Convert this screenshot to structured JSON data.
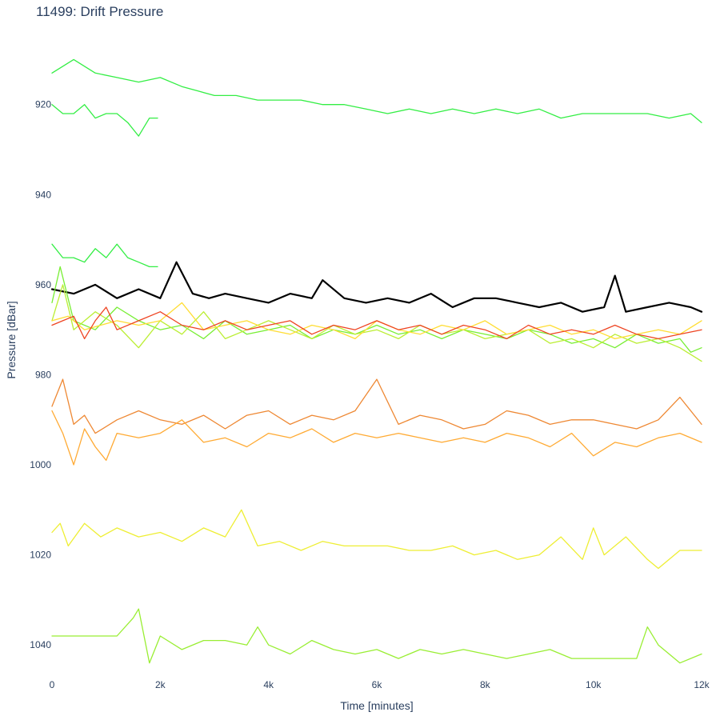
{
  "chart_data": {
    "type": "line",
    "title": "11499: Drift Pressure",
    "xlabel": "Time [minutes]",
    "ylabel": "Pressure [dBar]",
    "xlim": [
      0,
      12000
    ],
    "ylim": [
      1046,
      903
    ],
    "y_reversed": true,
    "grid": false,
    "legend": "none",
    "x_ticks": [
      {
        "value": 0,
        "label": "0"
      },
      {
        "value": 2000,
        "label": "2k"
      },
      {
        "value": 4000,
        "label": "4k"
      },
      {
        "value": 6000,
        "label": "6k"
      },
      {
        "value": 8000,
        "label": "8k"
      },
      {
        "value": 10000,
        "label": "10k"
      },
      {
        "value": 12000,
        "label": "12k"
      }
    ],
    "y_ticks": [
      {
        "value": 920,
        "label": "920"
      },
      {
        "value": 940,
        "label": "940"
      },
      {
        "value": 960,
        "label": "960"
      },
      {
        "value": 980,
        "label": "980"
      },
      {
        "value": 1000,
        "label": "1000"
      },
      {
        "value": 1020,
        "label": "1020"
      },
      {
        "value": 1040,
        "label": "1040"
      }
    ],
    "series": [
      {
        "name": "green-top",
        "color": "#33ee44",
        "width": 1.3,
        "x": [
          0,
          400,
          800,
          1200,
          1600,
          2000,
          2400,
          2700,
          3000,
          3400,
          3800,
          4200,
          4600,
          5000,
          5400,
          5800,
          6200,
          6600,
          7000,
          7400,
          7800,
          8200,
          8600,
          9000,
          9400,
          9800,
          10200,
          10600,
          11000,
          11400,
          11800,
          12000
        ],
        "y": [
          913,
          910,
          913,
          914,
          915,
          914,
          916,
          917,
          918,
          918,
          919,
          919,
          919,
          920,
          920,
          921,
          922,
          921,
          922,
          921,
          922,
          921,
          922,
          921,
          923,
          922,
          922,
          922,
          922,
          923,
          922,
          924
        ]
      },
      {
        "name": "green-short-920",
        "color": "#33ee44",
        "width": 1.3,
        "x": [
          0,
          200,
          400,
          600,
          800,
          1000,
          1200,
          1400,
          1600,
          1800,
          1950
        ],
        "y": [
          920,
          922,
          922,
          920,
          923,
          922,
          922,
          924,
          927,
          923,
          923
        ]
      },
      {
        "name": "green-short-952",
        "color": "#33ee44",
        "width": 1.3,
        "x": [
          0,
          200,
          400,
          600,
          800,
          1000,
          1200,
          1400,
          1600,
          1800,
          1950
        ],
        "y": [
          951,
          954,
          954,
          955,
          952,
          954,
          951,
          954,
          955,
          956,
          956
        ]
      },
      {
        "name": "black-main",
        "color": "#000000",
        "width": 2.2,
        "x": [
          0,
          400,
          800,
          1200,
          1600,
          2000,
          2300,
          2600,
          2900,
          3200,
          3600,
          4000,
          4400,
          4800,
          5000,
          5400,
          5800,
          6200,
          6600,
          7000,
          7400,
          7800,
          8200,
          8600,
          9000,
          9400,
          9800,
          10200,
          10400,
          10600,
          11000,
          11400,
          11800,
          12000
        ],
        "y": [
          961,
          962,
          960,
          963,
          961,
          963,
          955,
          962,
          963,
          962,
          963,
          964,
          962,
          963,
          959,
          963,
          964,
          963,
          964,
          962,
          965,
          963,
          963,
          964,
          965,
          964,
          966,
          965,
          958,
          966,
          965,
          964,
          965,
          966
        ]
      },
      {
        "name": "green-mid",
        "color": "#77ee33",
        "width": 1.3,
        "x": [
          0,
          150,
          400,
          800,
          1200,
          1600,
          2000,
          2400,
          2800,
          3200,
          3600,
          4000,
          4400,
          4800,
          5200,
          5600,
          6000,
          6400,
          6800,
          7200,
          7600,
          8000,
          8400,
          8800,
          9200,
          9600,
          10000,
          10400,
          10800,
          11200,
          11600,
          11800,
          12000
        ],
        "y": [
          964,
          956,
          968,
          970,
          965,
          968,
          970,
          969,
          972,
          968,
          971,
          970,
          969,
          972,
          970,
          971,
          969,
          971,
          970,
          972,
          970,
          971,
          972,
          970,
          971,
          973,
          972,
          974,
          971,
          973,
          972,
          975,
          974
        ]
      },
      {
        "name": "yellow-green-mid",
        "color": "#bbee33",
        "width": 1.3,
        "x": [
          0,
          200,
          400,
          800,
          1200,
          1600,
          2000,
          2400,
          2800,
          3200,
          3600,
          4000,
          4400,
          4800,
          5200,
          5600,
          6000,
          6400,
          6800,
          7200,
          7600,
          8000,
          8400,
          8800,
          9200,
          9600,
          10000,
          10400,
          10800,
          11200,
          11600,
          12000
        ],
        "y": [
          968,
          960,
          970,
          966,
          969,
          974,
          968,
          971,
          966,
          972,
          970,
          968,
          970,
          972,
          969,
          971,
          970,
          972,
          969,
          971,
          970,
          972,
          971,
          970,
          973,
          972,
          974,
          971,
          973,
          972,
          974,
          977
        ]
      },
      {
        "name": "yellow-mid",
        "color": "#ffdd33",
        "width": 1.3,
        "x": [
          0,
          300,
          600,
          900,
          1200,
          1600,
          2000,
          2400,
          2800,
          3200,
          3600,
          4000,
          4400,
          4800,
          5200,
          5600,
          6000,
          6400,
          6800,
          7200,
          7600,
          8000,
          8400,
          8800,
          9200,
          9600,
          10000,
          10400,
          10800,
          11200,
          11600,
          12000
        ],
        "y": [
          968,
          967,
          970,
          969,
          968,
          969,
          968,
          964,
          970,
          969,
          968,
          970,
          971,
          969,
          970,
          972,
          968,
          970,
          971,
          969,
          970,
          968,
          971,
          970,
          969,
          971,
          970,
          972,
          971,
          970,
          971,
          968
        ]
      },
      {
        "name": "red-mid",
        "color": "#ee4422",
        "width": 1.3,
        "x": [
          0,
          200,
          400,
          600,
          800,
          1000,
          1200,
          1600,
          2000,
          2400,
          2800,
          3200,
          3600,
          4000,
          4400,
          4800,
          5200,
          5600,
          6000,
          6400,
          6800,
          7200,
          7600,
          8000,
          8400,
          8800,
          9200,
          9600,
          10000,
          10400,
          10800,
          11200,
          11600,
          12000
        ],
        "y": [
          969,
          968,
          967,
          972,
          968,
          965,
          970,
          968,
          966,
          969,
          970,
          968,
          970,
          969,
          968,
          971,
          969,
          970,
          968,
          970,
          969,
          971,
          969,
          970,
          972,
          969,
          971,
          970,
          971,
          969,
          971,
          972,
          971,
          970
        ]
      },
      {
        "name": "orange-upper",
        "color": "#ee8833",
        "width": 1.3,
        "x": [
          0,
          200,
          400,
          600,
          800,
          1200,
          1600,
          2000,
          2400,
          2800,
          3200,
          3600,
          4000,
          4400,
          4800,
          5200,
          5600,
          6000,
          6400,
          6800,
          7200,
          7600,
          8000,
          8400,
          8800,
          9200,
          9600,
          10000,
          10400,
          10800,
          11200,
          11600,
          12000
        ],
        "y": [
          987,
          981,
          991,
          989,
          993,
          990,
          988,
          990,
          991,
          989,
          992,
          989,
          988,
          991,
          989,
          990,
          988,
          981,
          991,
          989,
          990,
          992,
          991,
          988,
          989,
          991,
          990,
          990,
          991,
          992,
          990,
          985,
          991
        ]
      },
      {
        "name": "orange-lower",
        "color": "#ffaa33",
        "width": 1.3,
        "x": [
          0,
          200,
          400,
          600,
          800,
          1000,
          1200,
          1600,
          2000,
          2400,
          2800,
          3200,
          3600,
          4000,
          4400,
          4800,
          5200,
          5600,
          6000,
          6400,
          6800,
          7200,
          7600,
          8000,
          8400,
          8800,
          9200,
          9600,
          10000,
          10400,
          10800,
          11200,
          11600,
          12000
        ],
        "y": [
          988,
          993,
          1000,
          992,
          996,
          999,
          993,
          994,
          993,
          990,
          995,
          994,
          996,
          993,
          994,
          992,
          995,
          993,
          994,
          993,
          994,
          995,
          994,
          995,
          993,
          994,
          996,
          993,
          998,
          995,
          996,
          994,
          993,
          995
        ]
      },
      {
        "name": "yellow-1020",
        "color": "#eeee33",
        "width": 1.3,
        "x": [
          0,
          150,
          300,
          600,
          900,
          1200,
          1600,
          2000,
          2400,
          2800,
          3200,
          3500,
          3800,
          4200,
          4600,
          5000,
          5400,
          5800,
          6200,
          6600,
          7000,
          7400,
          7800,
          8200,
          8600,
          9000,
          9400,
          9800,
          10000,
          10200,
          10600,
          11000,
          11200,
          11600,
          12000
        ],
        "y": [
          1015,
          1013,
          1018,
          1013,
          1016,
          1014,
          1016,
          1015,
          1017,
          1014,
          1016,
          1010,
          1018,
          1017,
          1019,
          1017,
          1018,
          1018,
          1018,
          1019,
          1019,
          1018,
          1020,
          1019,
          1021,
          1020,
          1016,
          1021,
          1014,
          1020,
          1016,
          1021,
          1023,
          1019,
          1019
        ]
      },
      {
        "name": "green-1040",
        "color": "#99ee33",
        "width": 1.3,
        "x": [
          0,
          300,
          600,
          900,
          1200,
          1500,
          1600,
          1800,
          2000,
          2400,
          2800,
          3200,
          3600,
          3800,
          4000,
          4400,
          4800,
          5200,
          5600,
          6000,
          6400,
          6800,
          7200,
          7600,
          8000,
          8400,
          8800,
          9200,
          9600,
          10000,
          10400,
          10800,
          11000,
          11200,
          11600,
          12000
        ],
        "y": [
          1038,
          1038,
          1038,
          1038,
          1038,
          1034,
          1032,
          1044,
          1038,
          1041,
          1039,
          1039,
          1040,
          1036,
          1040,
          1042,
          1039,
          1041,
          1042,
          1041,
          1043,
          1041,
          1042,
          1041,
          1042,
          1043,
          1042,
          1041,
          1043,
          1043,
          1043,
          1043,
          1036,
          1040,
          1044,
          1042
        ]
      }
    ]
  }
}
